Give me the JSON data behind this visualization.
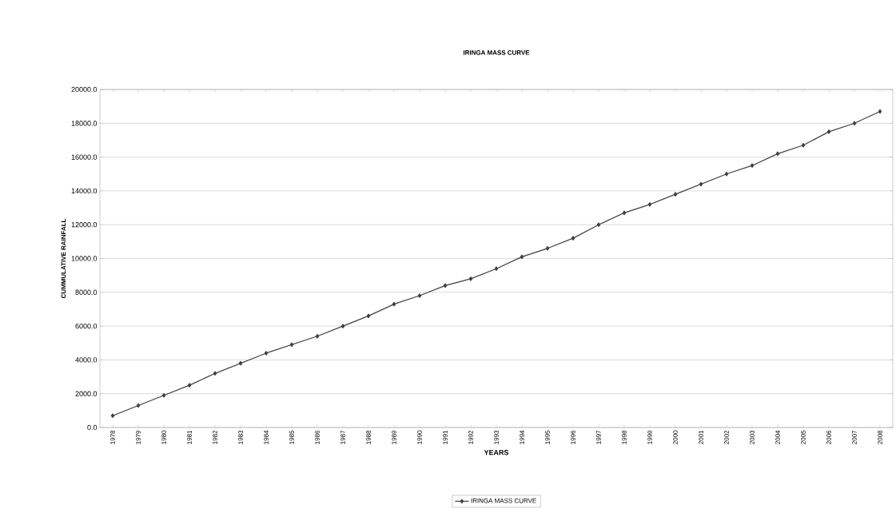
{
  "chart_data": {
    "type": "line",
    "title": "IRINGA MASS CURVE",
    "xlabel": "YEARS",
    "ylabel": "CUMMULATIVE RAINFALL",
    "categories": [
      "1978",
      "1979",
      "1980",
      "1981",
      "1982",
      "1983",
      "1984",
      "1985",
      "1986",
      "1987",
      "1988",
      "1989",
      "1990",
      "1991",
      "1992",
      "1993",
      "1994",
      "1995",
      "1996",
      "1997",
      "1998",
      "1999",
      "2000",
      "2001",
      "2002",
      "2003",
      "2004",
      "2005",
      "2006",
      "2007",
      "2008"
    ],
    "series": [
      {
        "name": "IRINGA MASS CURVE",
        "color": "#404040",
        "values": [
          700,
          1300,
          1900,
          2500,
          3200,
          3800,
          4400,
          4900,
          5400,
          6000,
          6600,
          7300,
          7800,
          8400,
          8800,
          9400,
          10100,
          10600,
          11200,
          12000,
          12700,
          13200,
          13800,
          14400,
          15000,
          15500,
          16200,
          16700,
          17500,
          18000,
          18700
        ]
      }
    ],
    "ylim": [
      0,
      20000
    ],
    "yticks": [
      {
        "value": 0,
        "label": "0.0"
      },
      {
        "value": 2000,
        "label": "2000.0"
      },
      {
        "value": 4000,
        "label": "4000.0"
      },
      {
        "value": 6000,
        "label": "6000.0"
      },
      {
        "value": 8000,
        "label": "8000.0"
      },
      {
        "value": 10000,
        "label": "10000.0"
      },
      {
        "value": 12000,
        "label": "12000.0"
      },
      {
        "value": 14000,
        "label": "14000.0"
      },
      {
        "value": 16000,
        "label": "16000.0"
      },
      {
        "value": 18000,
        "label": "18000.0"
      },
      {
        "value": 20000,
        "label": "20000.0"
      }
    ],
    "grid": "y",
    "legend": "bottom",
    "marker": "diamond",
    "line_style": "solid"
  }
}
